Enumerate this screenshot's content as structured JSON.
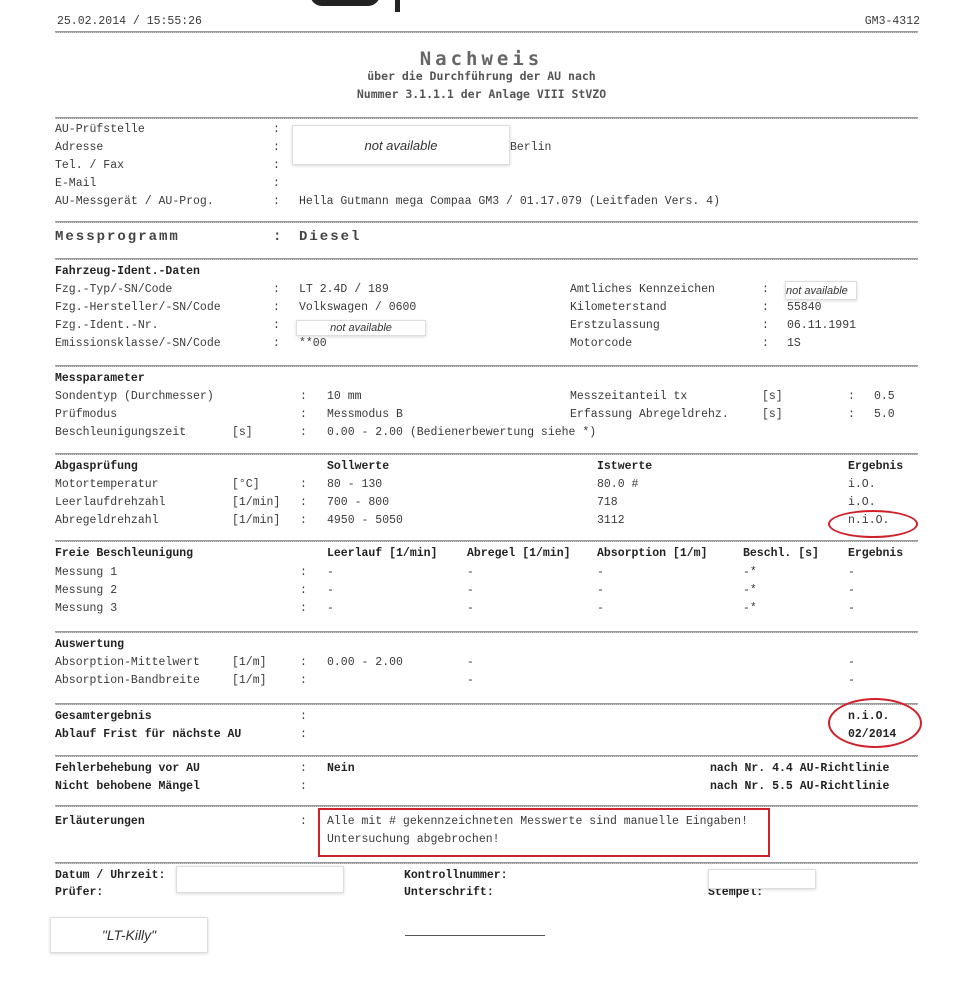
{
  "header": {
    "datetime": "25.02.2014 / 15:55:26",
    "device_id": "GM3-4312"
  },
  "title": {
    "main": "Nachweis",
    "line1": "über die Durchführung der AU nach",
    "line2": "Nummer 3.1.1.1 der Anlage VIII StVZO"
  },
  "station": {
    "labels": [
      "AU-Prüfstelle",
      "Adresse",
      "Tel. / Fax",
      "E-Mail",
      "AU-Messgerät / AU-Prog."
    ],
    "city": "Berlin",
    "redacted": "not available",
    "device": "Hella Gutmann mega Compaa GM3 / 01.17.079 (Leitfaden Vers. 4)"
  },
  "program": {
    "label": "Messprogramm",
    "value": "Diesel"
  },
  "vehicle": {
    "heading": "Fahrzeug-Ident.-Daten",
    "left": [
      {
        "label": "Fzg.-Typ/-SN/Code",
        "value": "LT 2.4D / 189"
      },
      {
        "label": "Fzg.-Hersteller/-SN/Code",
        "value": "Volkswagen / 0600"
      },
      {
        "label": "Fzg.-Ident.-Nr.",
        "value": "not available"
      },
      {
        "label": "Emissionsklasse/-SN/Code",
        "value": "**00"
      }
    ],
    "right": [
      {
        "label": "Amtliches Kennzeichen",
        "value": "not available"
      },
      {
        "label": "Kilometerstand",
        "value": "55840"
      },
      {
        "label": "Erstzulassung",
        "value": "06.11.1991"
      },
      {
        "label": "Motorcode",
        "value": "1S"
      }
    ]
  },
  "params": {
    "heading": "Messparameter",
    "left": [
      {
        "label": "Sondentyp (Durchmesser)",
        "unit": "",
        "value": "10 mm"
      },
      {
        "label": "Prüfmodus",
        "unit": "",
        "value": "Messmodus B"
      },
      {
        "label": "Beschleunigungszeit",
        "unit": "[s]",
        "value": "0.00 - 2.00 (Bedienerbewertung siehe *)"
      }
    ],
    "right": [
      {
        "label": "Messzeitanteil tx",
        "unit": "[s]",
        "value": "0.5"
      },
      {
        "label": "Erfassung Abregeldrehz.",
        "unit": "[s]",
        "value": "5.0"
      }
    ]
  },
  "exhaust": {
    "heading": "Abgasprüfung",
    "col_target": "Sollwerte",
    "col_actual": "Istwerte",
    "col_result": "Ergebnis",
    "rows": [
      {
        "label": "Motortemperatur",
        "unit": "[°C]",
        "target": "80 - 130",
        "actual": "80.0 #",
        "result": "i.O."
      },
      {
        "label": "Leerlaufdrehzahl",
        "unit": "[1/min]",
        "target": "700 - 800",
        "actual": "718",
        "result": "i.O."
      },
      {
        "label": "Abregeldrehzahl",
        "unit": "[1/min]",
        "target": "4950 - 5050",
        "actual": "3112",
        "result": "n.i.O."
      }
    ]
  },
  "free_accel": {
    "heading": "Freie Beschleunigung",
    "cols": [
      "Leerlauf [1/min]",
      "Abregel [1/min]",
      "Absorption [1/m]",
      "Beschl. [s]",
      "Ergebnis"
    ],
    "rows": [
      {
        "label": "Messung 1",
        "vals": [
          "-",
          "-",
          "-",
          "-*",
          "-"
        ]
      },
      {
        "label": "Messung 2",
        "vals": [
          "-",
          "-",
          "-",
          "-*",
          "-"
        ]
      },
      {
        "label": "Messung 3",
        "vals": [
          "-",
          "-",
          "-",
          "-*",
          "-"
        ]
      }
    ]
  },
  "evaluation": {
    "heading": "Auswertung",
    "rows": [
      {
        "label": "Absorption-Mittelwert",
        "unit": "[1/m]",
        "value": "0.00 - 2.00",
        "mid": "-",
        "result": "-"
      },
      {
        "label": "Absorption-Bandbreite",
        "unit": "[1/m]",
        "value": "",
        "mid": "-",
        "result": "-"
      }
    ]
  },
  "overall": {
    "label": "Gesamtergebnis",
    "value": "n.i.O.",
    "deadline_label": "Ablauf Frist für nächste AU",
    "deadline": "02/2014"
  },
  "defects": {
    "fix_label": "Fehlerbehebung vor AU",
    "fix_value": "Nein",
    "fix_ref": "nach Nr. 4.4 AU-Richtlinie",
    "open_label": "Nicht behobene Mängel",
    "open_ref": "nach Nr. 5.5 AU-Richtlinie"
  },
  "notes": {
    "label": "Erläuterungen",
    "line1": "Alle mit # gekennzeichneten Messwerte sind manuelle Eingaben!",
    "line2": "Untersuchung abgebrochen!"
  },
  "footer": {
    "date_label": "Datum / Uhrzeit:",
    "inspector_label": "Prüfer:",
    "control_label": "Kontrollnummer:",
    "signature_label": "Unterschrift:",
    "stamp_label": "Stempel:",
    "inspector_name": "\"LT-Killy\""
  },
  "colors": {
    "annotation": "#d0202a"
  }
}
